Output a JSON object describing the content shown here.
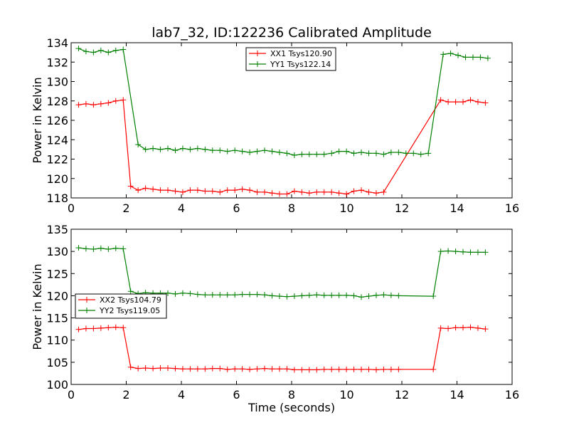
{
  "figure": {
    "title": "lab7_32, ID:122236 Calibrated Amplitude",
    "xlabel": "Time (seconds)"
  },
  "colors": {
    "red": "#ff0000",
    "green": "#008000"
  },
  "chart_data": [
    {
      "type": "line",
      "title": "lab7_32, ID:122236 Calibrated Amplitude",
      "xlabel": "",
      "ylabel": "Power in Kelvin",
      "xlim": [
        0,
        16
      ],
      "ylim": [
        118,
        134
      ],
      "xticks": [
        "0",
        "2",
        "4",
        "6",
        "8",
        "10",
        "12",
        "14",
        "16"
      ],
      "yticks": [
        "118",
        "120",
        "122",
        "124",
        "126",
        "128",
        "130",
        "132",
        "134"
      ],
      "grid": false,
      "legend_position": "top-center",
      "x": [
        0.27,
        0.54,
        0.81,
        1.08,
        1.35,
        1.62,
        1.89,
        2.16,
        2.43,
        2.7,
        2.97,
        3.24,
        3.51,
        3.78,
        4.05,
        4.32,
        4.59,
        4.86,
        5.13,
        5.4,
        5.67,
        5.94,
        6.21,
        6.48,
        6.75,
        7.02,
        7.29,
        7.56,
        7.83,
        8.1,
        8.37,
        8.64,
        8.91,
        9.18,
        9.45,
        9.72,
        9.99,
        10.26,
        10.53,
        10.8,
        11.07,
        11.34,
        11.61,
        11.88,
        12.15,
        12.42,
        12.69,
        12.96,
        13.23,
        13.5,
        13.77,
        14.04,
        14.31,
        14.58,
        14.85,
        15.12
      ],
      "series": [
        {
          "name": "XX1 Tsys120.90",
          "color": "#ff0000",
          "values": [
            127.6,
            127.7,
            127.6,
            127.7,
            127.8,
            128.0,
            128.1,
            null,
            119.2,
            118.8,
            119.0,
            118.9,
            118.8,
            118.8,
            118.7,
            118.6,
            118.8,
            118.8,
            118.7,
            118.7,
            118.6,
            118.8,
            118.8,
            118.9,
            118.8,
            118.6,
            118.6,
            118.5,
            118.4,
            118.4,
            118.7,
            118.6,
            118.5,
            118.6,
            118.6,
            118.6,
            118.5,
            118.4,
            118.7,
            118.8,
            118.6,
            118.5,
            118.6,
            null,
            128.1,
            127.9,
            127.9,
            127.9,
            128.1,
            127.9,
            127.8
          ],
          "x": [
            0.27,
            0.54,
            0.81,
            1.08,
            1.35,
            1.62,
            1.89,
            null,
            2.16,
            2.43,
            2.7,
            2.97,
            3.24,
            3.51,
            3.78,
            4.05,
            4.32,
            4.59,
            4.86,
            5.13,
            5.4,
            5.67,
            5.94,
            6.21,
            6.48,
            6.75,
            7.02,
            7.29,
            7.56,
            7.83,
            8.1,
            8.37,
            8.64,
            8.91,
            9.18,
            9.45,
            9.72,
            9.99,
            10.26,
            10.53,
            10.8,
            11.07,
            11.34,
            null,
            13.41,
            13.68,
            13.95,
            14.22,
            14.49,
            14.76,
            15.03
          ]
        },
        {
          "name": "YY1 Tsys122.14",
          "color": "#008000",
          "values": [
            133.4,
            133.1,
            133.0,
            133.2,
            133.0,
            133.2,
            133.3,
            null,
            123.5,
            123.0,
            123.1,
            123.0,
            123.1,
            122.9,
            123.1,
            123.0,
            123.1,
            123.0,
            122.9,
            122.9,
            122.8,
            122.9,
            122.8,
            122.7,
            122.8,
            122.9,
            122.8,
            122.7,
            122.6,
            122.4,
            122.5,
            122.5,
            122.5,
            122.5,
            122.6,
            122.8,
            122.8,
            122.6,
            122.7,
            122.6,
            122.6,
            122.5,
            122.7,
            122.7,
            122.6,
            122.6,
            122.5,
            122.6,
            null,
            132.8,
            132.9,
            132.7,
            132.5,
            132.5,
            132.5,
            132.4
          ]
        }
      ]
    },
    {
      "type": "line",
      "title": "",
      "xlabel": "Time (seconds)",
      "ylabel": "Power in Kelvin",
      "xlim": [
        0,
        16
      ],
      "ylim": [
        100,
        135
      ],
      "xticks": [
        "0",
        "2",
        "4",
        "6",
        "8",
        "10",
        "12",
        "14",
        "16"
      ],
      "yticks": [
        "100",
        "105",
        "110",
        "115",
        "120",
        "125",
        "130",
        "135"
      ],
      "grid": false,
      "legend_position": "center-left",
      "series": [
        {
          "name": "XX2 Tsys104.79",
          "color": "#ff0000",
          "values": [
            112.4,
            112.6,
            112.6,
            112.7,
            112.8,
            112.9,
            112.8,
            103.9,
            103.6,
            103.7,
            103.6,
            103.7,
            103.7,
            103.6,
            103.5,
            103.5,
            103.5,
            103.5,
            103.6,
            103.6,
            103.4,
            103.5,
            103.5,
            103.4,
            103.5,
            103.6,
            103.5,
            103.5,
            103.5,
            103.3,
            103.3,
            103.3,
            103.3,
            103.4,
            103.4,
            103.4,
            103.4,
            103.4,
            103.4,
            103.4,
            103.3,
            103.4,
            103.4,
            103.4,
            103.4,
            112.7,
            112.6,
            112.8,
            112.8,
            112.9,
            112.7,
            112.5
          ],
          "x": [
            0.27,
            0.54,
            0.81,
            1.08,
            1.35,
            1.62,
            1.89,
            2.16,
            2.43,
            2.7,
            2.97,
            3.24,
            3.51,
            3.78,
            4.05,
            4.32,
            4.59,
            4.86,
            5.13,
            5.4,
            5.67,
            5.94,
            6.21,
            6.48,
            6.75,
            7.02,
            7.29,
            7.56,
            7.83,
            8.1,
            8.37,
            8.64,
            8.91,
            9.18,
            9.45,
            9.72,
            9.99,
            10.26,
            10.53,
            10.8,
            11.07,
            11.34,
            11.61,
            11.88,
            13.14,
            13.41,
            13.68,
            13.95,
            14.22,
            14.49,
            14.76,
            15.03
          ]
        },
        {
          "name": "YY2 Tsys119.05",
          "color": "#008000",
          "values": [
            130.8,
            130.6,
            130.5,
            130.7,
            130.5,
            130.7,
            130.6,
            121.0,
            120.5,
            120.7,
            120.6,
            120.6,
            120.6,
            120.4,
            120.6,
            120.5,
            120.3,
            120.2,
            120.2,
            120.2,
            120.2,
            120.2,
            120.3,
            120.3,
            120.3,
            120.2,
            120.0,
            119.9,
            119.8,
            119.9,
            120.0,
            120.1,
            120.2,
            120.1,
            120.1,
            120.1,
            120.1,
            120.0,
            119.7,
            119.9,
            120.1,
            120.2,
            120.1,
            120.0,
            119.9,
            130.0,
            130.1,
            130.0,
            129.9,
            129.8,
            129.8,
            129.8
          ],
          "x": [
            0.27,
            0.54,
            0.81,
            1.08,
            1.35,
            1.62,
            1.89,
            2.16,
            2.43,
            2.7,
            2.97,
            3.24,
            3.51,
            3.78,
            4.05,
            4.32,
            4.59,
            4.86,
            5.13,
            5.4,
            5.67,
            5.94,
            6.21,
            6.48,
            6.75,
            7.02,
            7.29,
            7.56,
            7.83,
            8.1,
            8.37,
            8.64,
            8.91,
            9.18,
            9.45,
            9.72,
            9.99,
            10.26,
            10.53,
            10.8,
            11.07,
            11.34,
            11.61,
            11.88,
            13.14,
            13.41,
            13.68,
            13.95,
            14.22,
            14.49,
            14.76,
            15.03
          ]
        }
      ]
    }
  ]
}
